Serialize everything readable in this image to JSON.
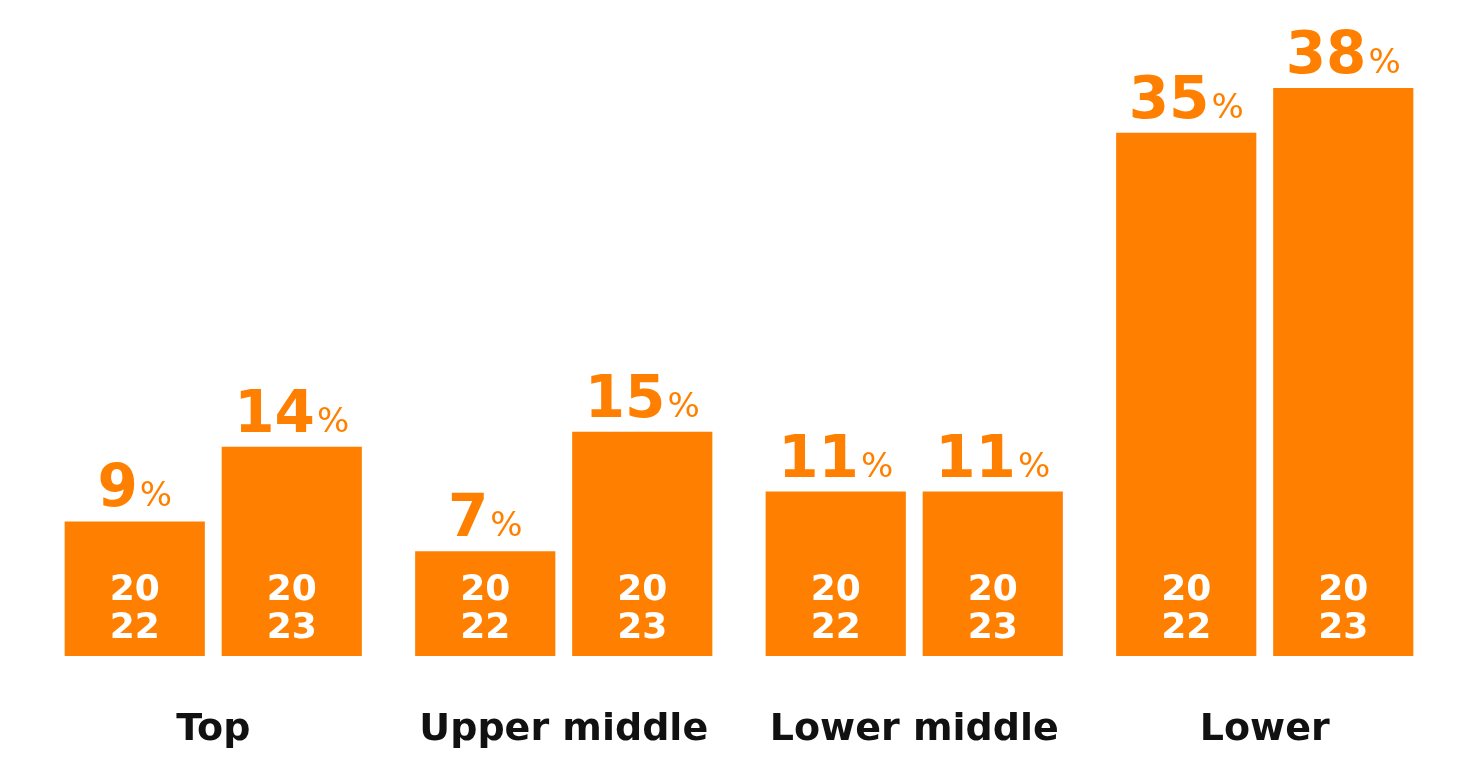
{
  "chart_data": {
    "type": "bar",
    "categories": [
      "Top",
      "Upper middle",
      "Lower middle",
      "Lower"
    ],
    "series": [
      {
        "name": "2022",
        "color": "#ff8000",
        "values": [
          9,
          7,
          11,
          35
        ],
        "value_labels": [
          "9%",
          "7%",
          "11%",
          "35%"
        ]
      },
      {
        "name": "2023",
        "color": "#ff8000",
        "values": [
          14,
          15,
          11,
          38
        ],
        "value_labels": [
          "14%",
          "15%",
          "11%",
          "38%"
        ]
      }
    ],
    "legend": false,
    "grid": false
  }
}
